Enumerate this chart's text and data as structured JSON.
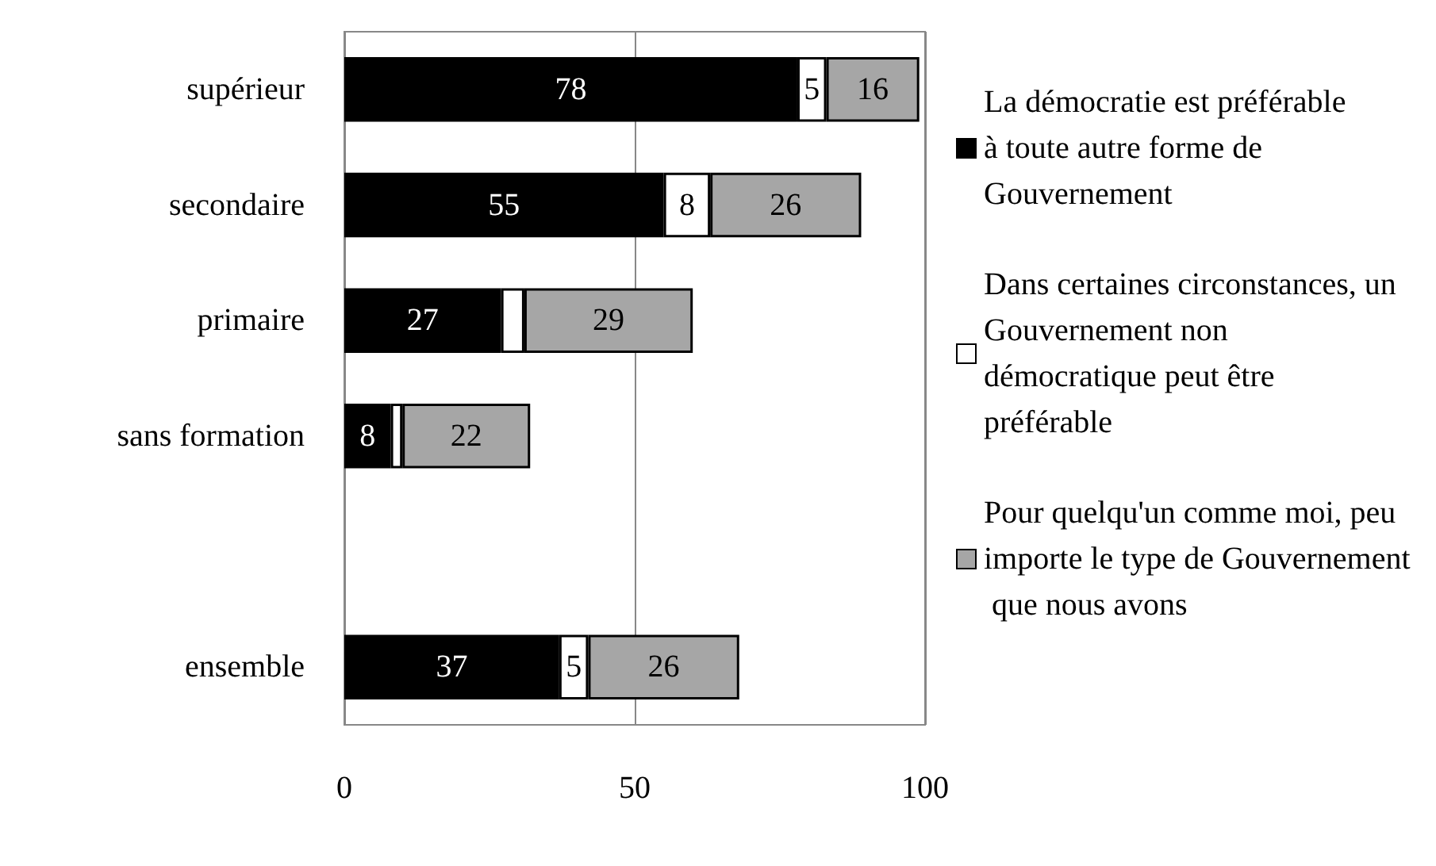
{
  "chart_data": {
    "type": "bar",
    "orientation": "horizontal",
    "stacked": true,
    "categories": [
      "supérieur",
      "secondaire",
      "primaire",
      "sans formation",
      null,
      "ensemble"
    ],
    "series": [
      {
        "name": "La démocratie est préférable à toute autre forme de Gouvernement",
        "color": "#000000",
        "values": [
          78,
          55,
          27,
          8,
          null,
          37
        ],
        "value_labels": [
          "78",
          "55",
          "27",
          "8",
          null,
          "37"
        ]
      },
      {
        "name": "Dans certaines circonstances, un Gouvernement non démocratique peut être préférable",
        "color": "#ffffff",
        "values": [
          5,
          8,
          4,
          2,
          null,
          5
        ],
        "value_labels": [
          "5",
          "8",
          null,
          null,
          null,
          "5"
        ]
      },
      {
        "name": "Pour quelqu'un comme moi, peu importe le type de Gouvernement que nous avons",
        "color": "#a6a6a6",
        "values": [
          16,
          26,
          29,
          22,
          null,
          26
        ],
        "value_labels": [
          "16",
          "26",
          "29",
          "22",
          null,
          "26"
        ]
      }
    ],
    "xlim": [
      0,
      100
    ],
    "xticks": [
      0,
      50,
      100
    ],
    "grid": "x",
    "legend": "right"
  }
}
